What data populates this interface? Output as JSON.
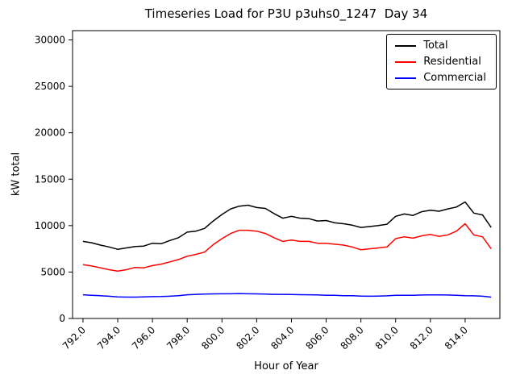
{
  "chart_data": {
    "type": "line",
    "title": "Timeseries Load for P3U p3uhs0_1247  Day 34",
    "xlabel": "Hour of Year",
    "ylabel": "kW total",
    "xlim": [
      791.4,
      816.0
    ],
    "ylim": [
      0,
      31000
    ],
    "grid": false,
    "x_ticks": [
      792,
      794,
      796,
      798,
      800,
      802,
      804,
      806,
      808,
      810,
      812,
      814
    ],
    "x_tick_labels": [
      "792.0",
      "794.0",
      "796.0",
      "798.0",
      "800.0",
      "802.0",
      "804.0",
      "806.0",
      "808.0",
      "810.0",
      "812.0",
      "814.0"
    ],
    "y_ticks": [
      0,
      5000,
      10000,
      15000,
      20000,
      25000,
      30000
    ],
    "y_tick_labels": [
      "0",
      "5000",
      "10000",
      "15000",
      "20000",
      "25000",
      "30000"
    ],
    "legend": {
      "position": "upper right"
    },
    "x": [
      792.0,
      792.5,
      793.0,
      793.5,
      794.0,
      794.5,
      795.0,
      795.5,
      796.0,
      796.5,
      797.0,
      797.5,
      798.0,
      798.5,
      799.0,
      799.5,
      800.0,
      800.5,
      801.0,
      801.5,
      802.0,
      802.5,
      803.0,
      803.5,
      804.0,
      804.5,
      805.0,
      805.5,
      806.0,
      806.5,
      807.0,
      807.5,
      808.0,
      808.5,
      809.0,
      809.5,
      810.0,
      810.5,
      811.0,
      811.5,
      812.0,
      812.5,
      813.0,
      813.5,
      814.0,
      814.5,
      815.0,
      815.5
    ],
    "series": [
      {
        "name": "Total",
        "color": "#000000",
        "values": [
          8300,
          8150,
          7900,
          7700,
          7450,
          7600,
          7750,
          7800,
          8100,
          8050,
          8400,
          8700,
          9300,
          9400,
          9700,
          10500,
          11200,
          11800,
          12100,
          12200,
          11950,
          11850,
          11300,
          10800,
          11000,
          10800,
          10750,
          10500,
          10550,
          10300,
          10200,
          10050,
          9800,
          9900,
          10000,
          10150,
          11000,
          11250,
          11100,
          11500,
          11650,
          11550,
          11800,
          12000,
          12550,
          11350,
          11150,
          9800
        ]
      },
      {
        "name": "Residential",
        "color": "#ff0000",
        "values": [
          5800,
          5650,
          5450,
          5250,
          5100,
          5250,
          5500,
          5450,
          5700,
          5850,
          6100,
          6350,
          6700,
          6900,
          7150,
          7950,
          8600,
          9150,
          9500,
          9500,
          9400,
          9150,
          8700,
          8300,
          8450,
          8300,
          8300,
          8100,
          8100,
          8000,
          7900,
          7700,
          7400,
          7500,
          7600,
          7700,
          8600,
          8800,
          8650,
          8900,
          9050,
          8850,
          9000,
          9400,
          10200,
          9000,
          8800,
          7500
        ]
      },
      {
        "name": "Commercial",
        "color": "#0000ff",
        "values": [
          2550,
          2500,
          2450,
          2400,
          2330,
          2300,
          2300,
          2320,
          2350,
          2360,
          2400,
          2450,
          2550,
          2600,
          2620,
          2650,
          2660,
          2660,
          2680,
          2660,
          2650,
          2620,
          2600,
          2600,
          2590,
          2560,
          2550,
          2540,
          2500,
          2490,
          2460,
          2450,
          2410,
          2400,
          2410,
          2440,
          2490,
          2500,
          2500,
          2530,
          2540,
          2540,
          2530,
          2500,
          2460,
          2440,
          2400,
          2300
        ]
      }
    ]
  }
}
